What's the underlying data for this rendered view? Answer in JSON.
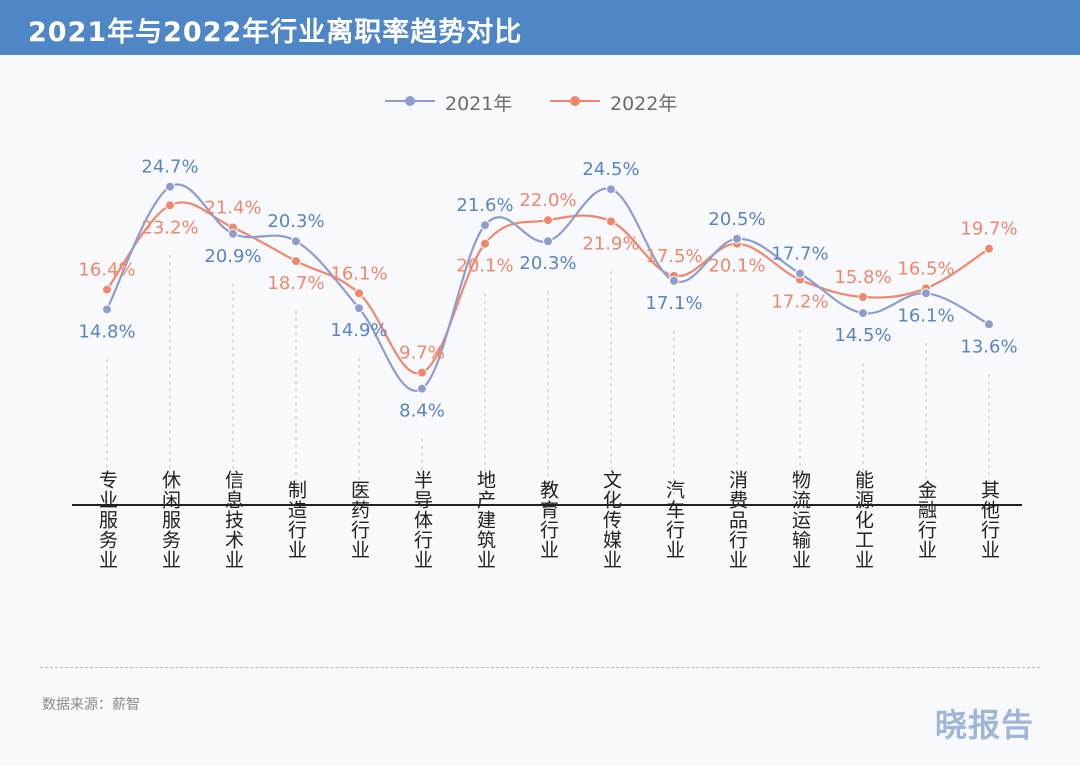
{
  "header": {
    "title": "2021年与2022年行业离职率趋势对比"
  },
  "legend": [
    {
      "name": "2021年",
      "color": "#8e9dd0"
    },
    {
      "name": "2022年",
      "color": "#f2866b"
    }
  ],
  "footer": {
    "source": "数据来源：薪智",
    "watermark": "晓报告"
  },
  "colors": {
    "header_bg": "#4f86c6",
    "series_2021_line": "#8e9dd0",
    "series_2021_label": "#5b84c6",
    "series_2022_line": "#f2866b",
    "series_2022_label": "#f2866b",
    "axis": "#222222",
    "guide": "#c8c8c8"
  },
  "chart_data": {
    "type": "line",
    "title": "2021年与2022年行业离职率趋势对比",
    "xlabel": "",
    "ylabel": "",
    "unit": "%",
    "ylim": [
      0,
      30
    ],
    "grid": false,
    "legend_position": "top-center",
    "smooth": true,
    "categories": [
      "专业服务业",
      "休闲服务业",
      "信息技术业",
      "制造行业",
      "医药行业",
      "半导体行业",
      "地产建筑业",
      "教育行业",
      "文化传媒业",
      "汽车行业",
      "消费品行业",
      "物流运输业",
      "能源化工业",
      "金融行业",
      "其他行业"
    ],
    "series": [
      {
        "name": "2021年",
        "values": [
          14.8,
          24.7,
          20.9,
          20.3,
          14.9,
          8.4,
          21.6,
          20.3,
          24.5,
          17.1,
          20.5,
          17.7,
          14.5,
          16.1,
          13.6
        ]
      },
      {
        "name": "2022年",
        "values": [
          16.4,
          23.2,
          21.4,
          18.7,
          16.1,
          9.7,
          20.1,
          22.0,
          21.9,
          17.5,
          20.1,
          17.2,
          15.8,
          16.5,
          19.7
        ]
      }
    ]
  }
}
